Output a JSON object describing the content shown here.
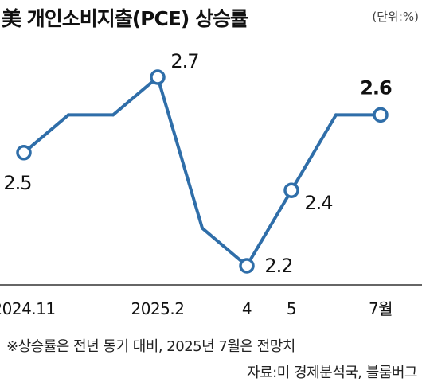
{
  "header": {
    "title": "美 개인소비지출(PCE) 상승률",
    "unit": "(단위:%)"
  },
  "footer": {
    "note": "※상승률은 전년 동기 대비, 2025년 7월은 전망치",
    "source": "자료:미 경제분석국, 블룸버그"
  },
  "colors": {
    "line": "#2f6ea9",
    "marker_fill": "#ffffff",
    "axis": "#333333",
    "text": "#111111"
  },
  "chart_data": {
    "type": "line",
    "title": "美 개인소비지출(PCE) 상승률",
    "unit": "%",
    "points": [
      {
        "period": "2024.11",
        "value": 2.5,
        "label": "2.5",
        "tick": "2024.11",
        "marked": true
      },
      {
        "period": "2024.12",
        "value": 2.6,
        "label": "",
        "tick": "",
        "marked": false
      },
      {
        "period": "2025.1",
        "value": 2.6,
        "label": "",
        "tick": "",
        "marked": false
      },
      {
        "period": "2025.2",
        "value": 2.7,
        "label": "2.7",
        "tick": "2025.2",
        "marked": true
      },
      {
        "period": "2025.3",
        "value": 2.3,
        "label": "",
        "tick": "",
        "marked": false
      },
      {
        "period": "2025.4",
        "value": 2.2,
        "label": "2.2",
        "tick": "4",
        "marked": true
      },
      {
        "period": "2025.5",
        "value": 2.4,
        "label": "2.4",
        "tick": "5",
        "marked": true
      },
      {
        "period": "2025.6",
        "value": 2.6,
        "label": "",
        "tick": "",
        "marked": false
      },
      {
        "period": "2025.7",
        "value": 2.6,
        "label": "2.6",
        "tick": "7월",
        "marked": true
      }
    ],
    "highlight_last": true,
    "grid": false,
    "legend": "none"
  }
}
